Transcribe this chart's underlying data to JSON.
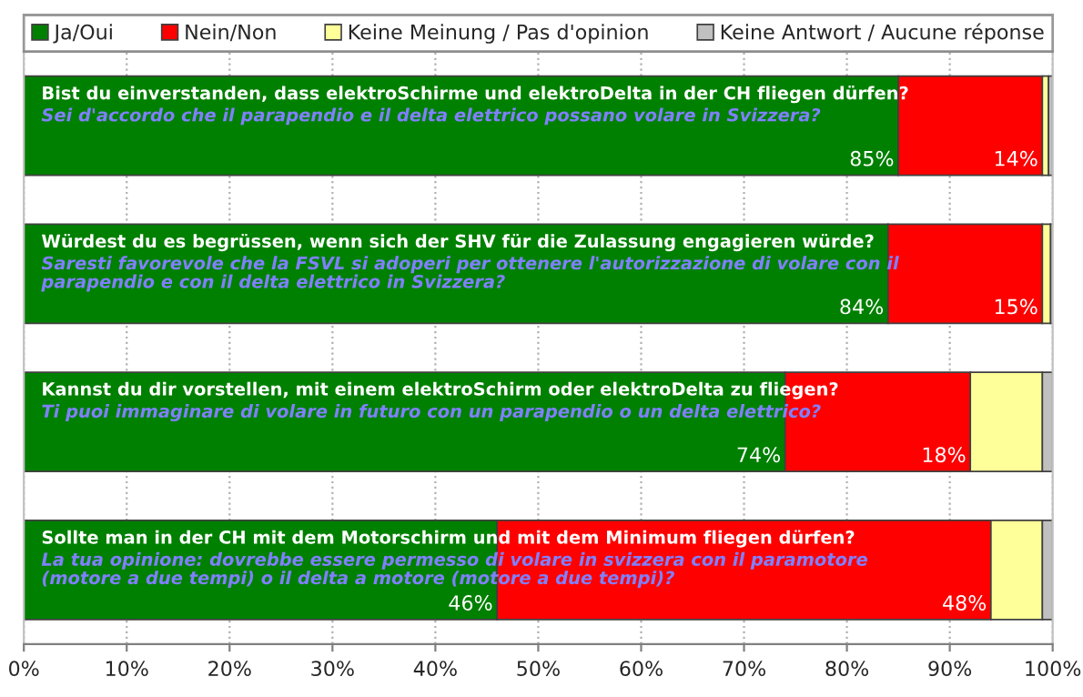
{
  "chart_data": {
    "type": "bar",
    "orientation": "horizontal",
    "stacked": true,
    "categories": [
      "Bist du einverstanden, dass elektroSchirme und elektroDelta in der CH fliegen dürfen?",
      "Würdest du es begrüssen, wenn sich der SHV für die Zulassung engagieren würde?",
      "Kannst du dir vorstellen, mit einem elektroSchirm oder elektroDelta zu fliegen?",
      "Sollte man in der CH mit dem Motorschirm und mit dem Minimum fliegen dürfen?"
    ],
    "annotations": [
      "Sei d'accordo che il parapendio e il delta elettrico possano volare in Svizzera?",
      "Saresti favorevole che la FSVL si adoperi per ottenere l'autorizzazione di volare con il\nparapendio e con il delta elettrico in Svizzera?",
      "Ti puoi immaginare di volare in futuro con un parapendio o un delta elettrico?",
      "La tua opinione: dovrebbe essere permesso di volare in svizzera con il paramotore\n(motore a due tempi) o il delta a motore (motore a due tempi)?"
    ],
    "series": [
      {
        "name": "Ja/Oui",
        "color": "#008000",
        "values": [
          85,
          84,
          74,
          46
        ],
        "value_labels": [
          "85%",
          "84%",
          "74%",
          "46%"
        ]
      },
      {
        "name": "Nein/Non",
        "color": "#ff0000",
        "values": [
          14,
          15,
          18,
          48
        ],
        "value_labels": [
          "14%",
          "15%",
          "18%",
          "48%"
        ]
      },
      {
        "name": "Keine Meinung / Pas d'opinion",
        "color": "#ffff99",
        "values": [
          0.6,
          0.8,
          7,
          5
        ]
      },
      {
        "name": "Keine Antwort / Aucune réponse",
        "color": "#c0c0c0",
        "values": [
          0.4,
          0.2,
          1,
          1
        ]
      }
    ],
    "xlim": [
      0,
      100
    ],
    "xticks": [
      {
        "value": 0,
        "label": "0%"
      },
      {
        "value": 10,
        "label": "10%"
      },
      {
        "value": 20,
        "label": "20%"
      },
      {
        "value": 30,
        "label": "30%"
      },
      {
        "value": 40,
        "label": "40%"
      },
      {
        "value": 50,
        "label": "50%"
      },
      {
        "value": 60,
        "label": "60%"
      },
      {
        "value": 70,
        "label": "70%"
      },
      {
        "value": 80,
        "label": "80%"
      },
      {
        "value": 90,
        "label": "90%"
      },
      {
        "value": 100,
        "label": "100%"
      }
    ],
    "grid": "x",
    "legend": "top"
  }
}
